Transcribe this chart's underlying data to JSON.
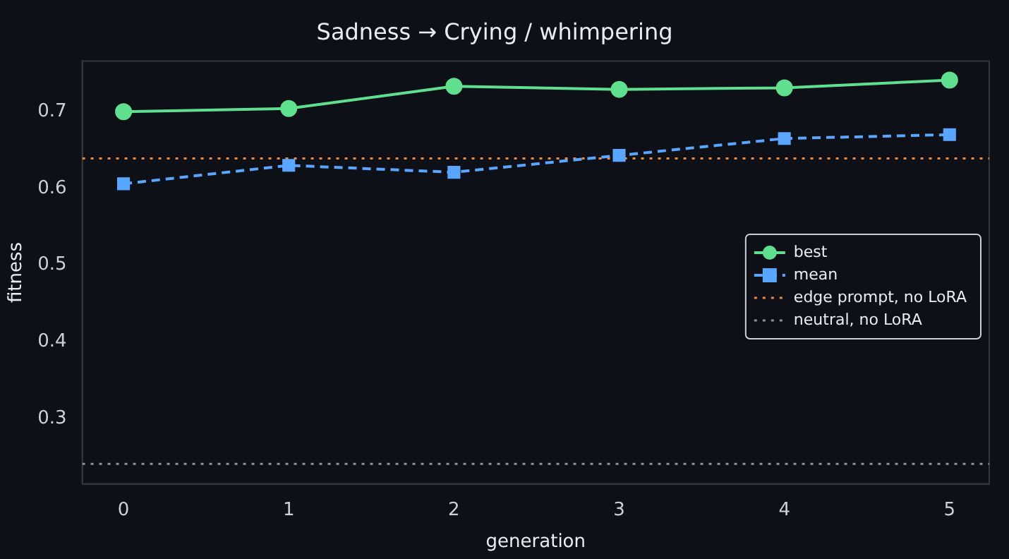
{
  "chart_data": {
    "type": "line",
    "title": "Sadness → Crying / whimpering",
    "xlabel": "generation",
    "ylabel": "fitness",
    "x": [
      0,
      1,
      2,
      3,
      4,
      5
    ],
    "series": [
      {
        "name": "best",
        "color": "#5ee08f",
        "values": [
          0.7,
          0.704,
          0.733,
          0.729,
          0.731,
          0.741
        ],
        "marker": "circle",
        "line_style": "solid"
      },
      {
        "name": "mean",
        "color": "#58a6ff",
        "values": [
          0.606,
          0.63,
          0.621,
          0.643,
          0.665,
          0.67
        ],
        "marker": "square",
        "line_style": "dashed"
      }
    ],
    "ref_lines": [
      {
        "axis": "y",
        "value": 0.639,
        "label": "edge prompt, no LoRA",
        "color": "#f0883e",
        "line_style": "dotted"
      },
      {
        "axis": "y",
        "value": 0.241,
        "label": "neutral, no LoRA",
        "color": "#8b949e",
        "line_style": "dotted"
      }
    ],
    "xlim": [
      -0.25,
      5.24
    ],
    "ylim": [
      0.215,
      0.766
    ],
    "xticks": [
      0,
      1,
      2,
      3,
      4,
      5
    ],
    "yticks": [
      0.3,
      0.4,
      0.5,
      0.6,
      0.7
    ],
    "grid": false,
    "legend": "right"
  }
}
